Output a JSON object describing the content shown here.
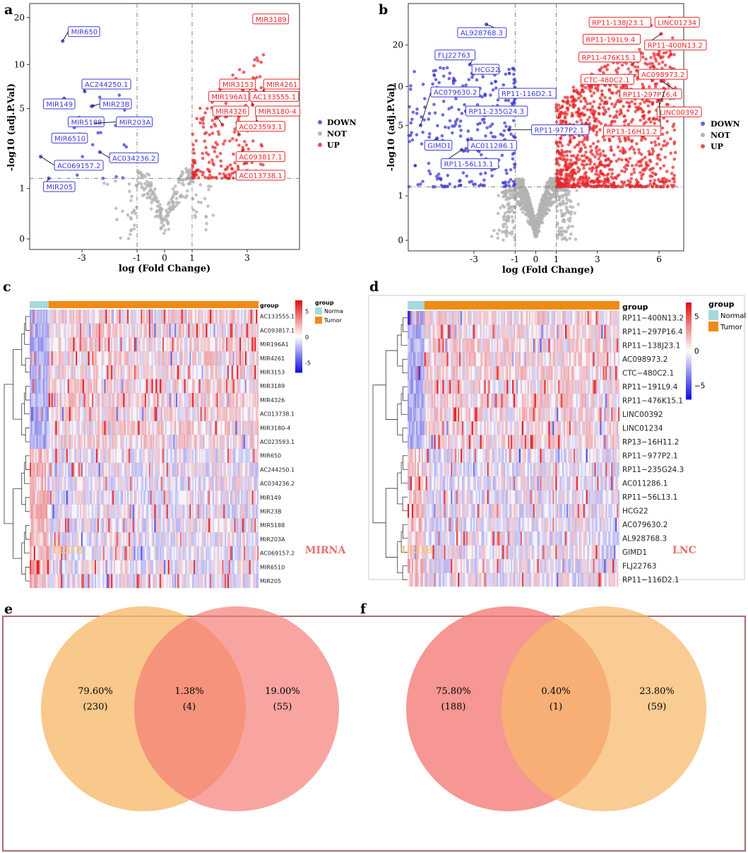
{
  "panel_letters": [
    "a",
    "b",
    "c",
    "d",
    "e",
    "f"
  ],
  "colors": {
    "down": "#3b3bd6",
    "not": "#b3b3b3",
    "up": "#e8262a",
    "normal": "#a8d8e0",
    "tumor": "#f08a14",
    "venn_orange": "#f7b86a",
    "venn_red": "#f47a74",
    "venn_frame": "#a86b70"
  },
  "chart_data": [
    {
      "panel": "a",
      "type": "scatter",
      "subtype": "volcano",
      "xlabel": "log (Fold Change)",
      "ylabel": "-log10 (adj.P.Val)",
      "x_ticks": [
        "-3",
        "-1",
        "0",
        "1",
        "3"
      ],
      "x_tick_values": [
        -3,
        -1,
        0,
        1,
        3
      ],
      "y_ticks": [
        "0",
        "1",
        "5",
        "10",
        "20"
      ],
      "y_tick_values": [
        0,
        1,
        5,
        10,
        20
      ],
      "xlim": [
        -4.9,
        4.9
      ],
      "y_scale": "log1p",
      "ylim": [
        0,
        21
      ],
      "thresholds": {
        "x": [
          -1,
          1
        ],
        "y": 1.3
      },
      "legend": [
        "DOWN",
        "NOT",
        "UP"
      ],
      "legend_position": "right",
      "background_points": {
        "not": 220,
        "down": 22,
        "up": 200,
        "x_max": 2.6,
        "y_max_sig": 7.5,
        "seed": 11
      },
      "labeled_points": [
        {
          "label": "MIR3189",
          "x": 4.3,
          "y": 19.6,
          "status": "UP",
          "lx": 3.2,
          "ly": 19.6
        },
        {
          "label": "MIR3153",
          "x": 2.95,
          "y": 6.3,
          "status": "UP",
          "lx": 2.0,
          "ly": 7.4
        },
        {
          "label": "MIR4261",
          "x": 3.6,
          "y": 6.6,
          "status": "UP",
          "lx": 3.6,
          "ly": 7.4
        },
        {
          "label": "MIR196A1",
          "x": 2.5,
          "y": 6.0,
          "status": "UP",
          "lx": 1.6,
          "ly": 6.1
        },
        {
          "label": "AC133555.1",
          "x": 3.2,
          "y": 5.3,
          "status": "UP",
          "lx": 3.1,
          "ly": 6.1
        },
        {
          "label": "MIR4326",
          "x": 2.1,
          "y": 3.8,
          "status": "UP",
          "lx": 1.75,
          "ly": 4.8
        },
        {
          "label": "MIR3180-4",
          "x": 3.35,
          "y": 4.0,
          "status": "UP",
          "lx": 3.3,
          "ly": 4.8
        },
        {
          "label": "AC023593.1",
          "x": 2.7,
          "y": 3.2,
          "status": "UP",
          "lx": 2.6,
          "ly": 3.7
        },
        {
          "label": "AC093817.1",
          "x": 2.85,
          "y": 2.4,
          "status": "UP",
          "lx": 2.6,
          "ly": 2.1
        },
        {
          "label": "AC013738.1",
          "x": 3.0,
          "y": 1.55,
          "status": "UP",
          "lx": 2.6,
          "ly": 1.4
        },
        {
          "label": "MIR650",
          "x": -3.7,
          "y": 14.2,
          "status": "DOWN",
          "lx": -3.5,
          "ly": 16.3
        },
        {
          "label": "AC244250.1",
          "x": -2.9,
          "y": 6.6,
          "status": "DOWN",
          "lx": -3.0,
          "ly": 7.4
        },
        {
          "label": "MIR149",
          "x": -3.65,
          "y": 5.9,
          "status": "DOWN",
          "lx": -4.4,
          "ly": 5.4
        },
        {
          "label": "MIR23B",
          "x": -2.65,
          "y": 5.2,
          "status": "DOWN",
          "lx": -2.35,
          "ly": 5.4
        },
        {
          "label": "MIR5188",
          "x": -3.1,
          "y": 4.3,
          "status": "DOWN",
          "lx": -3.5,
          "ly": 4.0
        },
        {
          "label": "MIR203A",
          "x": -2.55,
          "y": 3.9,
          "status": "DOWN",
          "lx": -1.75,
          "ly": 4.0
        },
        {
          "label": "MIR6510",
          "x": -3.6,
          "y": 3.0,
          "status": "DOWN",
          "lx": -4.1,
          "ly": 3.0
        },
        {
          "label": "AC034236.2",
          "x": -2.35,
          "y": 2.3,
          "status": "DOWN",
          "lx": -2.0,
          "ly": 2.05
        },
        {
          "label": "AC069157.2",
          "x": -4.5,
          "y": 2.1,
          "status": "DOWN",
          "lx": -4.0,
          "ly": 1.75
        },
        {
          "label": "MIR205",
          "x": -4.2,
          "y": 1.3,
          "status": "DOWN",
          "lx": -4.4,
          "ly": 1.05
        }
      ]
    },
    {
      "panel": "b",
      "type": "scatter",
      "subtype": "volcano",
      "xlabel": "log (Fold Change)",
      "ylabel": "-log10 (adj.P.Val)",
      "x_ticks": [
        "-3",
        "-1",
        "0",
        "1",
        "3",
        "6"
      ],
      "x_tick_values": [
        -3,
        -1,
        0,
        1,
        3,
        6
      ],
      "y_ticks": [
        "0",
        "1",
        "5",
        "10",
        "20"
      ],
      "y_tick_values": [
        0,
        1,
        5,
        10,
        20
      ],
      "xlim": [
        -6.2,
        7.2
      ],
      "y_scale": "log1p",
      "ylim": [
        0,
        33
      ],
      "thresholds": {
        "x": [
          -1,
          1
        ],
        "y": 1.3
      },
      "legend": [
        "DOWN",
        "NOT",
        "UP"
      ],
      "legend_position": "right",
      "background_points": {
        "not": 900,
        "down": 260,
        "up": 1100,
        "x_max": 5.8,
        "y_max_sig": 16,
        "seed": 29
      },
      "labeled_points": [
        {
          "label": "RP11-138J23.1",
          "x": 5.6,
          "y": 27.5,
          "status": "UP",
          "lx": 2.6,
          "ly": 29.0
        },
        {
          "label": "LINC01234",
          "x": 6.5,
          "y": 31.0,
          "status": "UP",
          "lx": 5.8,
          "ly": 29.0
        },
        {
          "label": "RP11-191L9.4",
          "x": 4.1,
          "y": 21.0,
          "status": "UP",
          "lx": 2.3,
          "ly": 22.0
        },
        {
          "label": "RP11-400N13.2",
          "x": 6.1,
          "y": 24.0,
          "status": "UP",
          "lx": 5.3,
          "ly": 20.0
        },
        {
          "label": "RP11-476K15.1",
          "x": 4.7,
          "y": 14.5,
          "status": "UP",
          "lx": 2.1,
          "ly": 16.4
        },
        {
          "label": "AC098973.2",
          "x": 6.4,
          "y": 12.8,
          "status": "UP",
          "lx": 5.0,
          "ly": 12.3
        },
        {
          "label": "CTC-480C2.1",
          "x": 4.5,
          "y": 11.5,
          "status": "UP",
          "lx": 2.2,
          "ly": 11.3
        },
        {
          "label": "RP11-297P16.4",
          "x": 6.1,
          "y": 11.0,
          "status": "UP",
          "lx": 4.1,
          "ly": 8.8
        },
        {
          "label": "LINC00392",
          "x": 6.3,
          "y": 9.5,
          "status": "UP",
          "lx": 5.9,
          "ly": 6.4
        },
        {
          "label": "RP13-16H11.2",
          "x": 6.0,
          "y": 8.0,
          "status": "UP",
          "lx": 3.3,
          "ly": 4.5
        },
        {
          "label": "AL928768.3",
          "x": -2.4,
          "y": 28.0,
          "status": "DOWN",
          "lx": -3.8,
          "ly": 24.5
        },
        {
          "label": "FLJ22763",
          "x": -3.2,
          "y": 14.5,
          "status": "DOWN",
          "lx": -4.9,
          "ly": 17.0
        },
        {
          "label": "HCG22",
          "x": -2.6,
          "y": 12.5,
          "status": "DOWN",
          "lx": -3.1,
          "ly": 13.4
        },
        {
          "label": "AC079630.2",
          "x": -5.6,
          "y": 5.0,
          "status": "DOWN",
          "lx": -5.1,
          "ly": 9.1
        },
        {
          "label": "RP11-116D2.1",
          "x": -1.6,
          "y": 9.5,
          "status": "DOWN",
          "lx": -1.8,
          "ly": 8.9
        },
        {
          "label": "RP11-235G24.3",
          "x": -3.4,
          "y": 6.5,
          "status": "DOWN",
          "lx": -3.4,
          "ly": 6.5
        },
        {
          "label": "RP11-977P2.1",
          "x": -1.3,
          "y": 4.6,
          "status": "DOWN",
          "lx": -0.2,
          "ly": 4.6
        },
        {
          "label": "GIMD1",
          "x": -4.8,
          "y": 3.9,
          "status": "DOWN",
          "lx": -5.4,
          "ly": 3.4
        },
        {
          "label": "AC011286.1",
          "x": -3.3,
          "y": 3.8,
          "status": "DOWN",
          "lx": -3.3,
          "ly": 3.4
        },
        {
          "label": "RP11-56L13.1",
          "x": -3.6,
          "y": 3.1,
          "status": "DOWN",
          "lx": -4.6,
          "ly": 2.3
        }
      ]
    },
    {
      "panel": "c",
      "type": "heatmap",
      "rows": [
        "AC133555.1",
        "AC093817.1",
        "MIR196A1",
        "MIR4261",
        "MIR3153",
        "MIR3189",
        "MIR4326",
        "AC013738.1",
        "MIR3180-4",
        "AC023593.1",
        "MIR650",
        "AC244250.1",
        "AC034236.2",
        "MIR149",
        "MIR23B",
        "MIR5188",
        "MIR203A",
        "AC069157.2",
        "MIR6510",
        "MIR205"
      ],
      "group_label": "group",
      "legend_title": "group",
      "legend_items": [
        "Norma",
        "Tumor"
      ],
      "colorbar_ticks": [
        "5",
        "0",
        "-5"
      ],
      "colorbar_values": [
        5,
        0,
        -5
      ],
      "n_normal_cols": 14,
      "n_tumor_cols": 155,
      "seed": 7
    },
    {
      "panel": "d",
      "type": "heatmap",
      "rows": [
        "RP11−400N13.2",
        "RP11−297P16.4",
        "RP11−138J23.1",
        "AC098973.2",
        "CTC−480C2.1",
        "RP11−191L9.4",
        "RP11−476K15.1",
        "LINC00392",
        "LINC01234",
        "RP13−16H11.2",
        "RP11−977P2.1",
        "RP11−235G24.3",
        "AC011286.1",
        "RP11−56L13.1",
        "HCG22",
        "AC079630.2",
        "AL928768.3",
        "GIMD1",
        "FLJ22763",
        "RP11−116D2.1"
      ],
      "group_label": "group",
      "legend_title": "group",
      "legend_items": [
        "Normal",
        "Tumor"
      ],
      "colorbar_ticks": [
        "5",
        "0",
        "−5"
      ],
      "colorbar_values": [
        5,
        0,
        -5
      ],
      "n_normal_cols": 12,
      "n_tumor_cols": 140,
      "seed": 19
    },
    {
      "panel": "e",
      "type": "venn",
      "sets": [
        "TRDB",
        "MIRNA"
      ],
      "regions": [
        {
          "percent": "79.60%",
          "count": "(230)"
        },
        {
          "percent": "1.38%",
          "count": "(4)"
        },
        {
          "percent": "19.00%",
          "count": "(55)"
        }
      ],
      "counts": [
        230,
        4,
        55
      ]
    },
    {
      "panel": "f",
      "type": "venn",
      "sets": [
        "LRDB",
        "LNC"
      ],
      "regions": [
        {
          "percent": "75.80%",
          "count": "(188)"
        },
        {
          "percent": "0.40%",
          "count": "(1)"
        },
        {
          "percent": "23.80%",
          "count": "(59)"
        }
      ],
      "counts": [
        188,
        1,
        59
      ]
    }
  ]
}
